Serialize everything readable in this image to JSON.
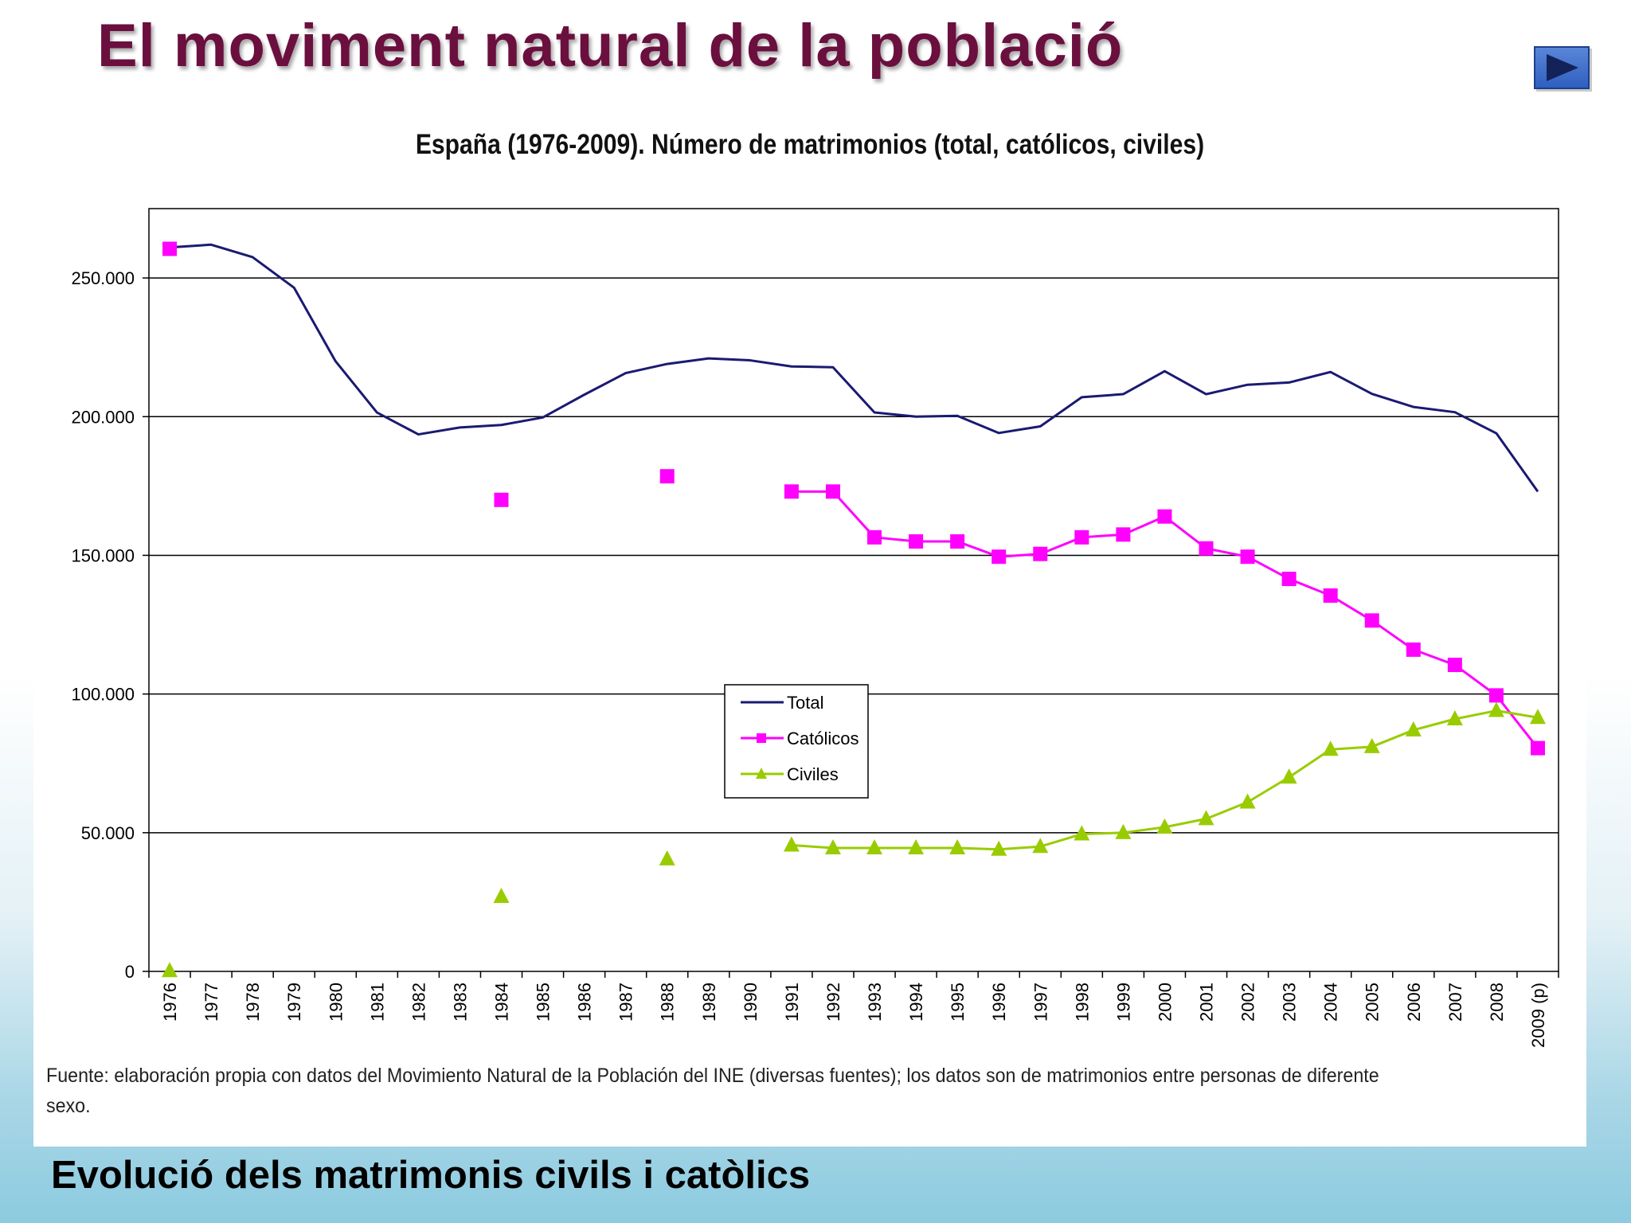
{
  "slide": {
    "title": "El moviment natural de la població",
    "caption": "Evolució dels matrimonis civils i catòlics",
    "nav_icon": "play-next-icon"
  },
  "source_note": "Fuente: elaboración propia con datos del Movimiento Natural de la Población del INE (diversas fuentes); los datos son de matrimonios entre personas de diferente sexo.",
  "colors": {
    "title": "#6a0f3e",
    "total": "#1a1a72",
    "catolicos": "#ff00ff",
    "civiles": "#99cc00",
    "grid": "#000000"
  },
  "chart_data": {
    "type": "line",
    "title": "España (1976-2009). Número de matrimonios (total, católicos, civiles)",
    "xlabel": "",
    "ylabel": "",
    "categories": [
      "1976",
      "1977",
      "1978",
      "1979",
      "1980",
      "1981",
      "1982",
      "1983",
      "1984",
      "1985",
      "1986",
      "1987",
      "1988",
      "1989",
      "1990",
      "1991",
      "1992",
      "1993",
      "1994",
      "1995",
      "1996",
      "1997",
      "1998",
      "1999",
      "2000",
      "2001",
      "2002",
      "2003",
      "2004",
      "2005",
      "2006",
      "2007",
      "2008",
      "2009 (p)"
    ],
    "ylim": [
      0,
      275000
    ],
    "yticks": [
      0,
      50000,
      100000,
      150000,
      200000,
      250000
    ],
    "ytick_labels": [
      "0",
      "50.000",
      "100.000",
      "150.000",
      "200.000",
      "250.000"
    ],
    "grid": true,
    "legend_position": "center",
    "series": [
      {
        "name": "Total",
        "marker": "none",
        "values": [
          261000,
          262000,
          257500,
          246500,
          220000,
          201500,
          193600,
          196100,
          197000,
          199700,
          207900,
          215700,
          219000,
          221000,
          220300,
          218100,
          217800,
          201500,
          200000,
          200300,
          194100,
          196500,
          207000,
          208100,
          216400,
          208100,
          211500,
          212300,
          216100,
          208200,
          203500,
          201600,
          194000,
          173000
        ]
      },
      {
        "name": "Católicos",
        "marker": "square",
        "values": [
          260500,
          null,
          null,
          null,
          null,
          null,
          null,
          null,
          170000,
          null,
          null,
          null,
          178500,
          null,
          null,
          173000,
          173000,
          156500,
          155000,
          155000,
          149500,
          150500,
          156500,
          157500,
          164000,
          152500,
          149500,
          141500,
          135500,
          126500,
          116000,
          110500,
          99500,
          80500
        ]
      },
      {
        "name": "Civiles",
        "marker": "triangle",
        "values": [
          200,
          null,
          null,
          null,
          null,
          null,
          null,
          null,
          27000,
          null,
          null,
          null,
          40500,
          null,
          null,
          45500,
          44500,
          44500,
          44500,
          44500,
          44000,
          45000,
          49500,
          50000,
          52000,
          55000,
          61000,
          70000,
          80000,
          81000,
          87000,
          91000,
          94000,
          91500
        ]
      }
    ]
  }
}
